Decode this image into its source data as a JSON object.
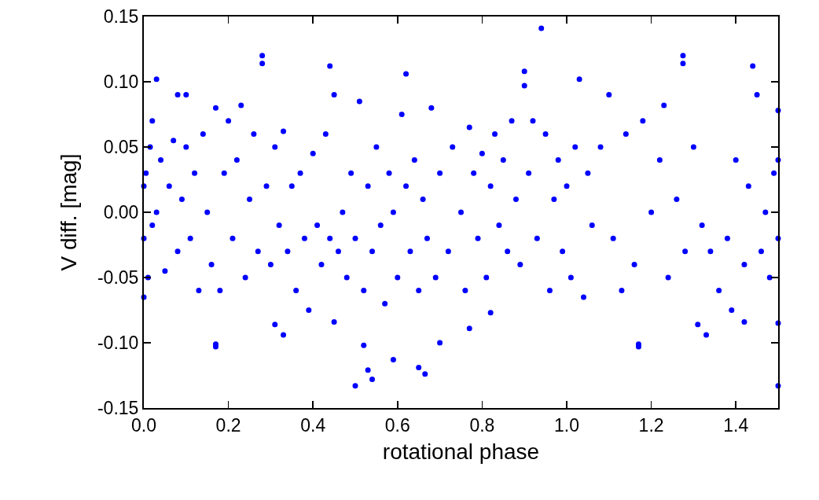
{
  "chart_data": {
    "type": "scatter",
    "xlabel": "rotational phase",
    "ylabel": "V diff. [mag]",
    "xlim": [
      0,
      1.5
    ],
    "xticks": [
      {
        "value": 0,
        "label": "0.0"
      },
      {
        "value": 0.2,
        "label": "0.2"
      },
      {
        "value": 0.4,
        "label": "0.4"
      },
      {
        "value": 0.6,
        "label": "0.6"
      },
      {
        "value": 0.8,
        "label": "0.8"
      },
      {
        "value": 1,
        "label": "1.0"
      },
      {
        "value": 1.2,
        "label": "1.2"
      },
      {
        "value": 1.4,
        "label": "1.4"
      }
    ],
    "ylim": [
      -0.15,
      0.15
    ],
    "yticks": [
      {
        "value": -0.15,
        "label": "-0.15"
      },
      {
        "value": -0.1,
        "label": "-0.10"
      },
      {
        "value": -0.05,
        "label": "-0.05"
      },
      {
        "value": 0,
        "label": "0.00"
      },
      {
        "value": 0.05,
        "label": "0.05"
      },
      {
        "value": 0.1,
        "label": "0.10"
      },
      {
        "value": 0.15,
        "label": "0.15"
      }
    ],
    "grid": false,
    "marker": "circle",
    "series": [
      {
        "color": "#0000ff",
        "x": [
          0.0,
          0.0,
          0.0,
          0.005,
          0.01,
          0.015,
          0.02,
          0.02,
          0.03,
          0.04,
          0.05,
          0.06,
          0.07,
          0.08,
          0.08,
          0.09,
          0.1,
          0.1,
          0.11,
          0.12,
          0.13,
          0.14,
          0.15,
          0.16,
          0.17,
          0.18,
          0.19,
          0.2,
          0.21,
          0.22,
          0.23,
          0.24,
          0.25,
          0.26,
          0.27,
          0.29,
          0.3,
          0.31,
          0.32,
          0.33,
          0.34,
          0.35,
          0.36,
          0.37,
          0.38,
          0.39,
          0.4,
          0.41,
          0.42,
          0.43,
          0.44,
          0.45,
          0.46,
          0.47,
          0.48,
          0.49,
          0.5,
          0.51,
          0.52,
          0.53,
          0.54,
          0.55,
          0.56,
          0.57,
          0.58,
          0.59,
          0.6,
          0.61,
          0.62,
          0.63,
          0.64,
          0.65,
          0.66,
          0.67,
          0.68,
          0.69,
          0.7,
          0.72,
          0.73,
          0.75,
          0.76,
          0.77,
          0.78,
          0.79,
          0.8,
          0.81,
          0.82,
          0.83,
          0.84,
          0.85,
          0.86,
          0.87,
          0.88,
          0.89,
          0.9,
          0.9,
          0.91,
          0.92,
          0.93,
          0.95,
          0.96,
          0.97,
          0.98,
          0.99,
          1.0,
          1.01,
          1.02,
          1.04,
          1.05,
          1.06,
          1.08,
          1.1,
          1.11,
          1.13,
          1.14,
          1.16,
          1.18,
          1.2,
          1.22,
          1.23,
          1.24,
          1.26,
          1.28,
          1.3,
          1.32,
          1.34,
          1.36,
          1.38,
          1.39,
          1.4,
          1.42,
          1.43,
          1.45,
          1.46,
          1.47,
          1.48,
          1.49,
          1.5,
          1.5,
          1.5,
          0.03,
          0.28,
          0.28,
          0.44,
          0.62,
          0.94,
          1.03,
          1.275,
          1.275,
          1.44,
          1.5,
          0.17,
          0.17,
          0.5,
          0.53,
          0.54,
          0.65,
          0.665,
          0.59,
          0.7,
          0.31,
          0.33,
          0.45,
          0.52,
          1.17,
          1.17,
          1.31,
          1.33,
          1.5,
          1.42,
          0.77,
          0.82
        ],
        "values": [
          0.02,
          -0.02,
          -0.065,
          0.03,
          -0.05,
          0.05,
          0.07,
          -0.01,
          0.0,
          0.04,
          -0.045,
          0.02,
          0.055,
          0.09,
          -0.03,
          0.01,
          0.05,
          0.09,
          -0.02,
          0.03,
          -0.06,
          0.06,
          0.0,
          -0.04,
          0.08,
          -0.06,
          0.03,
          0.07,
          -0.02,
          0.04,
          0.082,
          -0.05,
          0.01,
          0.06,
          -0.03,
          0.02,
          -0.04,
          0.05,
          -0.01,
          0.062,
          -0.03,
          0.02,
          -0.06,
          0.03,
          -0.02,
          -0.075,
          0.045,
          -0.01,
          -0.04,
          0.06,
          -0.02,
          0.09,
          -0.03,
          0.0,
          -0.05,
          0.03,
          -0.02,
          0.085,
          -0.06,
          0.02,
          -0.03,
          0.05,
          -0.01,
          -0.07,
          0.03,
          0.0,
          -0.05,
          0.075,
          0.02,
          -0.03,
          0.04,
          -0.06,
          0.01,
          -0.02,
          0.08,
          -0.05,
          0.03,
          -0.03,
          0.05,
          0.0,
          -0.06,
          0.065,
          0.03,
          -0.02,
          0.045,
          -0.05,
          0.02,
          0.06,
          -0.01,
          0.04,
          -0.03,
          0.07,
          0.01,
          -0.04,
          0.097,
          0.108,
          0.03,
          0.07,
          -0.02,
          0.06,
          -0.06,
          0.01,
          0.04,
          -0.03,
          0.02,
          -0.05,
          0.05,
          -0.065,
          0.03,
          -0.01,
          0.05,
          0.09,
          -0.02,
          -0.06,
          0.06,
          -0.04,
          0.07,
          0.0,
          0.04,
          0.082,
          -0.05,
          0.01,
          -0.03,
          0.05,
          -0.01,
          -0.03,
          -0.06,
          -0.02,
          -0.075,
          0.04,
          -0.04,
          0.02,
          0.09,
          -0.03,
          0.0,
          -0.05,
          0.03,
          -0.02,
          -0.085,
          0.04,
          0.102,
          0.12,
          0.114,
          0.112,
          0.106,
          0.141,
          0.102,
          0.12,
          0.114,
          0.112,
          0.078,
          -0.103,
          -0.101,
          -0.133,
          -0.121,
          -0.128,
          -0.119,
          -0.124,
          -0.113,
          -0.1,
          -0.086,
          -0.094,
          -0.084,
          -0.102,
          -0.103,
          -0.101,
          -0.086,
          -0.094,
          -0.133,
          -0.084,
          -0.089,
          -0.077
        ]
      }
    ]
  }
}
